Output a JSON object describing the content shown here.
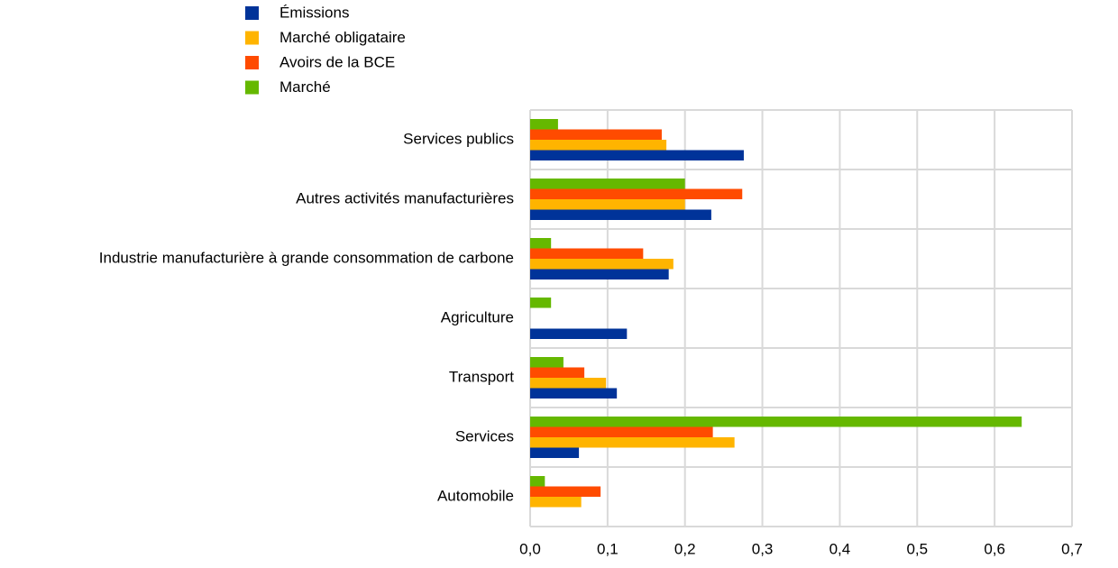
{
  "chart_data": {
    "type": "barh",
    "categories": [
      "Services publics",
      "Autres activités manufacturières",
      "Industrie manufacturière à grande consommation de carbone",
      "Agriculture",
      "Transport",
      "Services",
      "Automobile"
    ],
    "series": [
      {
        "name": "Émissions",
        "color": "#003399",
        "values": [
          0.276,
          0.234,
          0.179,
          0.125,
          0.112,
          0.063,
          0
        ]
      },
      {
        "name": "Marché obligataire",
        "color": "#ffb400",
        "values": [
          0.176,
          0.2,
          0.185,
          0,
          0.098,
          0.264,
          0.066
        ]
      },
      {
        "name": "Avoirs de la BCE",
        "color": "#ff4b00",
        "values": [
          0.17,
          0.274,
          0.146,
          0,
          0.07,
          0.236,
          0.091
        ]
      },
      {
        "name": "Marché",
        "color": "#65b800",
        "values": [
          0.036,
          0.2,
          0.027,
          0.027,
          0.043,
          0.635,
          0.019
        ]
      }
    ],
    "xlim": [
      0,
      0.7
    ],
    "xticks": [
      {
        "value": 0,
        "label": "0,0"
      },
      {
        "value": 0.1,
        "label": "0,1"
      },
      {
        "value": 0.2,
        "label": "0,2"
      },
      {
        "value": 0.3,
        "label": "0,3"
      },
      {
        "value": 0.4,
        "label": "0,4"
      },
      {
        "value": 0.5,
        "label": "0,5"
      },
      {
        "value": 0.6,
        "label": "0,6"
      },
      {
        "value": 0.7,
        "label": "0,7"
      }
    ],
    "grid": true
  }
}
